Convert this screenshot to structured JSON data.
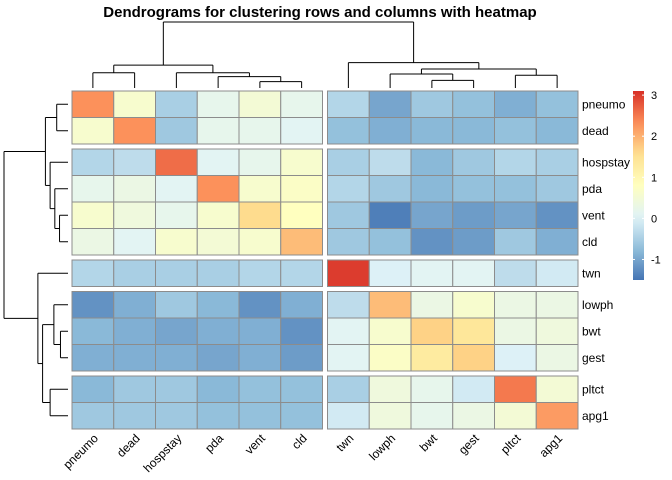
{
  "chart_data": {
    "type": "heatmap",
    "title": "Dendrograms for clustering rows and columns with heatmap",
    "rows": [
      "pneumo",
      "dead",
      "hospstay",
      "pda",
      "vent",
      "cld",
      "twn",
      "lowph",
      "bwt",
      "gest",
      "pltct",
      "apg1"
    ],
    "columns": [
      "pneumo",
      "dead",
      "hospstay",
      "pda",
      "vent",
      "cld",
      "twn",
      "lowph",
      "bwt",
      "gest",
      "pltct",
      "apg1"
    ],
    "row_groups": [
      [
        0,
        1
      ],
      [
        2,
        3,
        4,
        5
      ],
      [
        6
      ],
      [
        7,
        8,
        9
      ],
      [
        10,
        11
      ]
    ],
    "column_groups": [
      [
        0,
        1,
        2,
        3,
        4,
        5
      ],
      [
        6,
        7,
        8,
        9,
        10,
        11
      ]
    ],
    "values": [
      [
        2.3,
        0.6,
        -0.5,
        0.2,
        0.5,
        0.2,
        -0.4,
        -1.0,
        -0.6,
        -0.7,
        -0.9,
        -0.7
      ],
      [
        0.6,
        2.3,
        -0.6,
        0.2,
        0.2,
        0.1,
        -0.7,
        -0.9,
        -0.8,
        -0.8,
        -0.7,
        -0.8
      ],
      [
        -0.4,
        -0.3,
        2.6,
        0.1,
        0.2,
        0.6,
        -0.5,
        -0.3,
        -0.8,
        -0.6,
        -0.4,
        -0.5
      ],
      [
        0.2,
        0.3,
        0.1,
        2.3,
        0.6,
        0.7,
        -0.4,
        -0.6,
        -0.8,
        -0.7,
        -0.7,
        -0.6
      ],
      [
        0.6,
        0.4,
        0.2,
        0.6,
        1.6,
        0.8,
        -0.6,
        -1.4,
        -1.0,
        -1.1,
        -1.0,
        -1.2
      ],
      [
        0.3,
        0.1,
        0.6,
        0.5,
        0.6,
        1.9,
        -0.6,
        -0.7,
        -1.2,
        -1.1,
        -0.6,
        -0.9
      ],
      [
        -0.4,
        -0.5,
        -0.5,
        -0.5,
        -0.4,
        -0.4,
        3.0,
        0.0,
        0.1,
        0.1,
        -0.3,
        -0.1
      ],
      [
        -1.2,
        -0.9,
        -0.6,
        -0.8,
        -1.2,
        -0.9,
        -0.3,
        1.9,
        0.3,
        0.6,
        0.3,
        0.3
      ],
      [
        -0.8,
        -0.9,
        -1.0,
        -0.9,
        -0.9,
        -1.2,
        0.1,
        0.6,
        1.7,
        1.4,
        0.3,
        0.4
      ],
      [
        -0.9,
        -0.9,
        -0.9,
        -1.0,
        -0.9,
        -1.1,
        0.1,
        0.7,
        1.3,
        1.7,
        0.0,
        0.3
      ],
      [
        -0.8,
        -0.6,
        -0.6,
        -0.8,
        -0.7,
        -0.7,
        -0.5,
        0.4,
        0.2,
        -0.1,
        2.5,
        0.5
      ],
      [
        -0.6,
        -0.6,
        -0.6,
        -0.7,
        -0.7,
        -0.7,
        -0.1,
        0.4,
        0.2,
        0.3,
        0.5,
        2.2
      ]
    ],
    "color_scale": [
      "#4575b4",
      "#91bfdb",
      "#e0f3f8",
      "#ffffbf",
      "#fee090",
      "#fc8d59",
      "#d73027"
    ],
    "legend": {
      "ticks": [
        3,
        2,
        1,
        0,
        -1
      ],
      "min": -1.5,
      "max": 3.1,
      "placement": "right"
    },
    "row_dendrogram": {
      "merges": [
        [
          0,
          1
        ],
        [
          4,
          5
        ],
        [
          3,
          "m2"
        ],
        [
          2,
          "m3"
        ],
        [
          "m1",
          "m4"
        ],
        [
          8,
          9
        ],
        [
          7,
          "m6"
        ],
        [
          10,
          11
        ],
        [
          "m7",
          "m8"
        ],
        [
          6,
          "m9"
        ],
        [
          "m5",
          "m10"
        ]
      ],
      "heights": [
        0.6,
        0.45,
        0.7,
        0.95,
        1.2,
        0.4,
        0.75,
        0.95,
        1.35,
        1.6,
        3.4
      ]
    },
    "column_dendrogram": {
      "merges": [
        [
          4,
          5
        ],
        [
          3,
          "m1"
        ],
        [
          2,
          "m2"
        ],
        [
          0,
          1
        ],
        [
          "m3",
          "m4"
        ],
        [
          8,
          9
        ],
        [
          7,
          "m6"
        ],
        [
          10,
          11
        ],
        [
          "m7",
          "m8"
        ],
        [
          6,
          "m9"
        ],
        [
          "m5",
          "m10"
        ]
      ],
      "heights": [
        0.25,
        0.45,
        0.6,
        0.6,
        0.9,
        0.3,
        0.55,
        0.5,
        0.75,
        1.0,
        2.6
      ]
    }
  }
}
